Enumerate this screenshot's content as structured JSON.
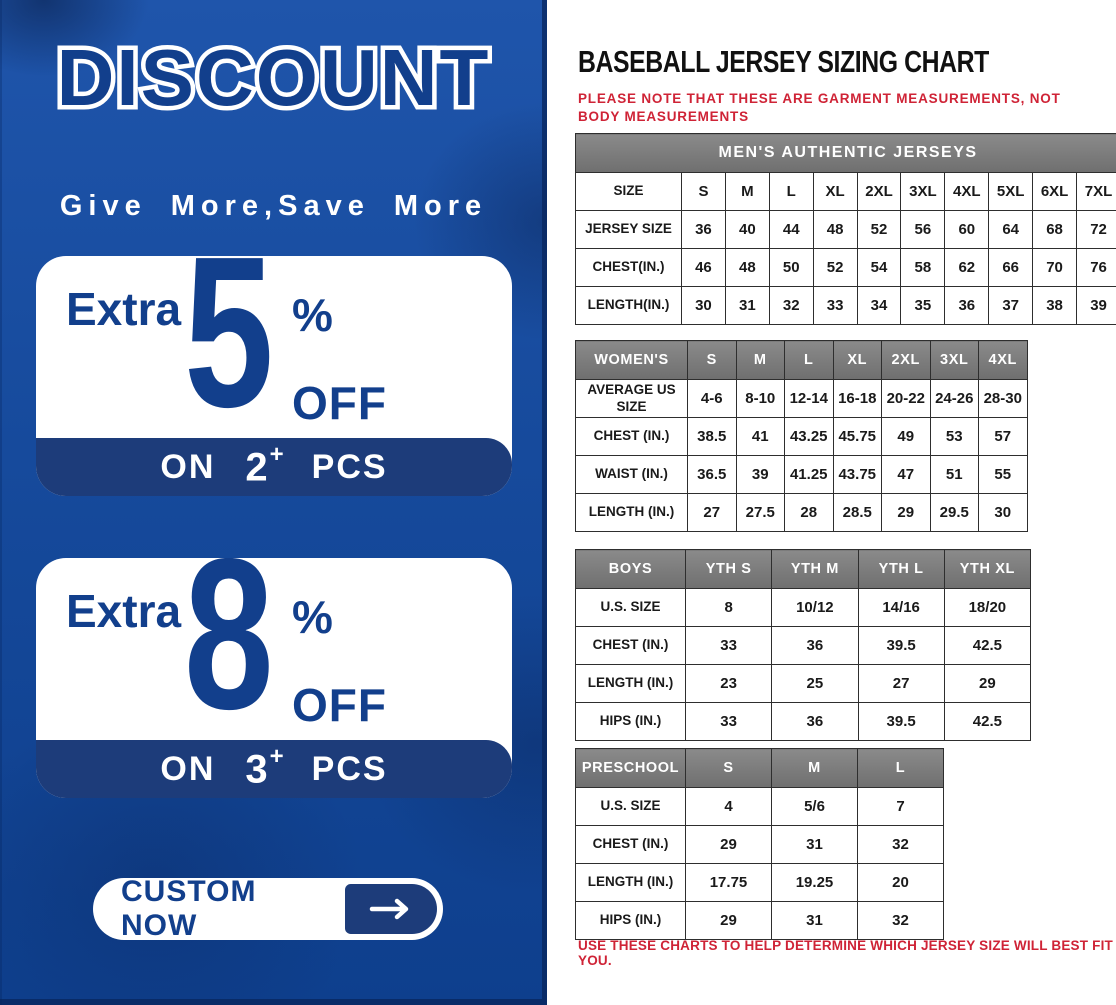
{
  "colors": {
    "panel_blue_top": "#1f55ab",
    "panel_blue_bottom": "#0e3f8d",
    "promo_deep_blue": "#123f8c",
    "band_navy": "#1d3c7a",
    "alert_red": "#cf2336",
    "table_header_gray": "#7b7b7b",
    "table_border": "#2e2e2e",
    "title_black": "#111111"
  },
  "promo": {
    "headline": "DISCOUNT",
    "tagline": "Give More,Save More",
    "offers": [
      {
        "label": "Extra",
        "value": "5",
        "unit": "%",
        "suffix": "OFF",
        "band": {
          "on": "ON",
          "qty": "2",
          "plus": "+",
          "pcs": "PCS"
        }
      },
      {
        "label": "Extra",
        "value": "8",
        "unit": "%",
        "suffix": "OFF",
        "band": {
          "on": "ON",
          "qty": "3",
          "plus": "+",
          "pcs": "PCS"
        }
      }
    ],
    "cta": {
      "label": "CUSTOM NOW",
      "icon": "arrow-right-icon"
    }
  },
  "sizing": {
    "title": "BASEBALL JERSEY SIZING CHART",
    "note": "PLEASE NOTE THAT THESE ARE GARMENT MEASUREMENTS, NOT BODY MEASUREMENTS",
    "footer": "USE THESE CHARTS TO HELP DETERMINE WHICH JERSEY SIZE WILL BEST FIT YOU.",
    "tables": [
      {
        "name": "mens",
        "merged_header": "MEN'S AUTHENTIC JERSEYS",
        "rows": [
          [
            "SIZE",
            "S",
            "M",
            "L",
            "XL",
            "2XL",
            "3XL",
            "4XL",
            "5XL",
            "6XL",
            "7XL"
          ],
          [
            "JERSEY SIZE",
            "36",
            "40",
            "44",
            "48",
            "52",
            "56",
            "60",
            "64",
            "68",
            "72"
          ],
          [
            "CHEST(IN.)",
            "46",
            "48",
            "50",
            "52",
            "54",
            "58",
            "62",
            "66",
            "70",
            "76"
          ],
          [
            "LENGTH(IN.)",
            "30",
            "31",
            "32",
            "33",
            "34",
            "35",
            "36",
            "37",
            "38",
            "39"
          ]
        ]
      },
      {
        "name": "womens",
        "header": [
          "WOMEN'S",
          "S",
          "M",
          "L",
          "XL",
          "2XL",
          "3XL",
          "4XL"
        ],
        "rows": [
          [
            "AVERAGE US SIZE",
            "4-6",
            "8-10",
            "12-14",
            "16-18",
            "20-22",
            "24-26",
            "28-30"
          ],
          [
            "CHEST (IN.)",
            "38.5",
            "41",
            "43.25",
            "45.75",
            "49",
            "53",
            "57"
          ],
          [
            "WAIST (IN.)",
            "36.5",
            "39",
            "41.25",
            "43.75",
            "47",
            "51",
            "55"
          ],
          [
            "LENGTH (IN.)",
            "27",
            "27.5",
            "28",
            "28.5",
            "29",
            "29.5",
            "30"
          ]
        ]
      },
      {
        "name": "boys",
        "header": [
          "BOYS",
          "YTH S",
          "YTH M",
          "YTH L",
          "YTH XL"
        ],
        "rows": [
          [
            "U.S. SIZE",
            "8",
            "10/12",
            "14/16",
            "18/20"
          ],
          [
            "CHEST (IN.)",
            "33",
            "36",
            "39.5",
            "42.5"
          ],
          [
            "LENGTH (IN.)",
            "23",
            "25",
            "27",
            "29"
          ],
          [
            "HIPS (IN.)",
            "33",
            "36",
            "39.5",
            "42.5"
          ]
        ]
      },
      {
        "name": "preschool",
        "header": [
          "PRESCHOOL",
          "S",
          "M",
          "L"
        ],
        "rows": [
          [
            "U.S. SIZE",
            "4",
            "5/6",
            "7"
          ],
          [
            "CHEST (IN.)",
            "29",
            "31",
            "32"
          ],
          [
            "LENGTH (IN.)",
            "17.75",
            "19.25",
            "20"
          ],
          [
            "HIPS (IN.)",
            "29",
            "31",
            "32"
          ]
        ]
      }
    ]
  }
}
